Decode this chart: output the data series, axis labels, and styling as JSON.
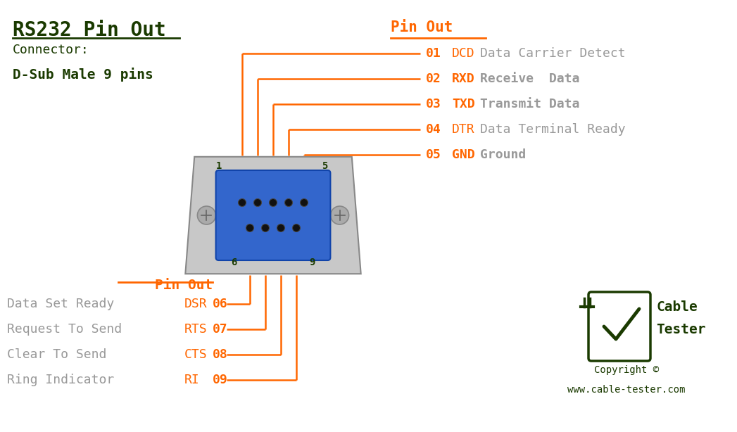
{
  "bg_color": "#ffffff",
  "title": "RS232 Pin Out",
  "title_color": "#1a3a00",
  "connector_label": "Connector:",
  "connector_type": "D-Sub Male 9 pins",
  "connector_color": "#1a3a00",
  "orange": "#ff6600",
  "orange_bold": "#ff4400",
  "gray_text": "#999999",
  "dark_green": "#1a3a00",
  "pin_out_label": "Pin Out",
  "top_pins": [
    {
      "num": "01",
      "abbr": "DCD",
      "desc": "Data Carrier Detect",
      "bold": false
    },
    {
      "num": "02",
      "abbr": "RXD",
      "desc": "Receive  Data",
      "bold": true
    },
    {
      "num": "03",
      "abbr": "TXD",
      "desc": "Transmit Data",
      "bold": true
    },
    {
      "num": "04",
      "abbr": "DTR",
      "desc": "Data Terminal Ready",
      "bold": false
    },
    {
      "num": "05",
      "abbr": "GND",
      "desc": "Ground",
      "bold": true
    }
  ],
  "bot_pins": [
    {
      "num": "06",
      "abbr": "DSR",
      "desc": "Data Set Ready",
      "bold": false
    },
    {
      "num": "07",
      "abbr": "RTS",
      "desc": "Request To Send",
      "bold": false
    },
    {
      "num": "08",
      "abbr": "CTS",
      "desc": "Clear To Send",
      "bold": false
    },
    {
      "num": "09",
      "abbr": "RI",
      "desc": "Ring Indicator",
      "bold": false
    }
  ],
  "copyright": "Copyright ©\nwww.cable-tester.com"
}
